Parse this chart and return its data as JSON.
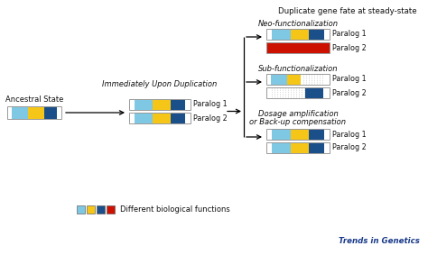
{
  "bg_color": "#ffffff",
  "light_blue": "#7EC8E3",
  "yellow": "#F5C518",
  "dark_blue": "#1A4F8A",
  "red": "#CC1100",
  "white": "#FFFFFF",
  "border_color": "#999999",
  "text_color": "#111111",
  "title_main": "Duplicate gene fate at steady-state",
  "title_neo": "Neo-functionalization",
  "title_sub": "Sub-functionalization",
  "title_dosage": "Dosage amplification\nor Back-up compensation",
  "label_ancestral": "Ancestral State",
  "label_upon_dup": "Immediately Upon Duplication",
  "label_paralog1": "Paralog 1",
  "label_paralog2": "Paralog 2",
  "legend_text": "Different biological functions",
  "brand_text": "Trends in Genetics",
  "anc_bar": [
    [
      "white",
      0.3
    ],
    [
      "light_blue",
      1.0
    ],
    [
      "yellow",
      1.0
    ],
    [
      "dark_blue",
      0.8
    ],
    [
      "white",
      0.3
    ]
  ],
  "dup_bar": [
    [
      "white",
      0.3
    ],
    [
      "light_blue",
      1.0
    ],
    [
      "yellow",
      1.0
    ],
    [
      "dark_blue",
      0.8
    ],
    [
      "white",
      0.3
    ]
  ],
  "neo_p1_bar": [
    [
      "white",
      0.3
    ],
    [
      "light_blue",
      1.0
    ],
    [
      "yellow",
      1.0
    ],
    [
      "dark_blue",
      0.8
    ],
    [
      "white",
      0.3
    ]
  ],
  "neo_p2_bar": [
    [
      "red",
      1.0
    ]
  ],
  "sub_p1_bar": [
    [
      "white",
      0.3
    ],
    [
      "light_blue",
      1.0
    ],
    [
      "yellow",
      0.8
    ],
    [
      "white",
      1.5
    ],
    [
      "white",
      0.3
    ]
  ],
  "sub_p2_bar": [
    [
      "white",
      0.3
    ],
    [
      "white",
      1.5
    ],
    [
      "dark_blue",
      0.8
    ],
    [
      "white",
      0.3
    ]
  ],
  "dos_p1_bar": [
    [
      "white",
      0.3
    ],
    [
      "light_blue",
      1.0
    ],
    [
      "yellow",
      1.0
    ],
    [
      "dark_blue",
      0.8
    ],
    [
      "white",
      0.3
    ]
  ],
  "dos_p2_bar": [
    [
      "white",
      0.3
    ],
    [
      "light_blue",
      1.0
    ],
    [
      "yellow",
      1.0
    ],
    [
      "dark_blue",
      0.8
    ],
    [
      "white",
      0.3
    ]
  ]
}
